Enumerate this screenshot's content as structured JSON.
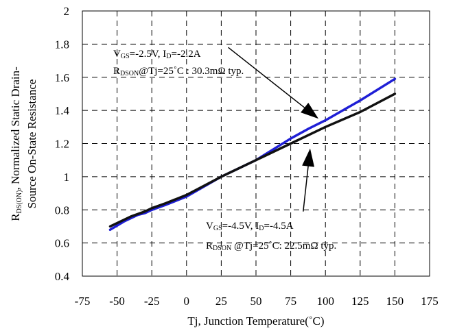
{
  "chart_data": {
    "type": "line",
    "title": "",
    "xlabel": "Tj, Junction Temperature(˚C)",
    "ylabel_lines": [
      {
        "main": "R",
        "sub": "DS(ON)",
        "rest": ", Normalized Static Drain-"
      },
      {
        "main": "Source On-State Resistance",
        "sub": "",
        "rest": ""
      }
    ],
    "xlim": [
      -75,
      175
    ],
    "ylim": [
      0.4,
      2
    ],
    "xticks": [
      -75,
      -50,
      -25,
      0,
      25,
      50,
      75,
      100,
      125,
      150,
      175
    ],
    "xtick_labels": [
      "-75",
      "-50",
      "-25",
      "0",
      "25",
      "50",
      "75",
      "100",
      "125",
      "150",
      "175"
    ],
    "yticks": [
      0.4,
      0.6,
      0.8,
      1,
      1.2,
      1.4,
      1.6,
      1.8,
      2
    ],
    "ytick_labels": [
      "0.4",
      "0.6",
      "0.8",
      "1",
      "1.2",
      "1.4",
      "1.6",
      "1.8",
      "2"
    ],
    "grid": true,
    "series": [
      {
        "color": "#1f1fd6",
        "x": [
          -55,
          -45,
          -35,
          -30,
          -25,
          -15,
          0,
          25,
          50,
          75,
          88,
          100,
          125,
          150
        ],
        "y": [
          0.68,
          0.73,
          0.77,
          0.78,
          0.8,
          0.83,
          0.88,
          1.0,
          1.1,
          1.23,
          1.29,
          1.34,
          1.46,
          1.59
        ]
      },
      {
        "color": "#111111",
        "x": [
          -55,
          -40,
          -30,
          -25,
          -15,
          0,
          25,
          50,
          75,
          100,
          125,
          150
        ],
        "y": [
          0.7,
          0.76,
          0.79,
          0.81,
          0.84,
          0.89,
          1.0,
          1.1,
          1.2,
          1.3,
          1.39,
          1.5
        ]
      }
    ],
    "annotations": [
      {
        "line1": {
          "a": "V",
          "a_sub": "GS",
          "b": "=-2.5V, I",
          "b_sub": "D",
          "c": "=-2.2A"
        },
        "line2": {
          "a": "R",
          "a_sub": "DSON",
          "b": "@Tj=25˚C : 30.3mΩ  typ.",
          "b_sub": "",
          "c": ""
        },
        "arrow_from": [
          30,
          1.78
        ],
        "arrow_to": [
          95,
          1.35
        ]
      },
      {
        "line1": {
          "a": "V",
          "a_sub": "GS",
          "b": "=-4.5V, I",
          "b_sub": "D",
          "c": "=-4.5A"
        },
        "line2": {
          "a": "R",
          "a_sub": "DSON",
          "b": " @Tj=25˚C: 22.5mΩ  typ.",
          "b_sub": "",
          "c": ""
        },
        "arrow_from": [
          84,
          0.79
        ],
        "arrow_to": [
          89,
          1.17
        ]
      }
    ]
  }
}
